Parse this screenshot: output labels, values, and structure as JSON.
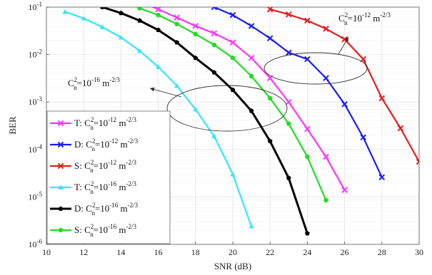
{
  "chart_data": {
    "type": "line",
    "title": "",
    "xlabel": "SNR (dB)",
    "ylabel": "BER",
    "xlim": [
      10,
      30
    ],
    "ylim": [
      1e-06,
      0.1
    ],
    "yscale": "log",
    "xticks": [
      "10",
      "12",
      "14",
      "16",
      "18",
      "20",
      "22",
      "24",
      "26",
      "28",
      "30"
    ],
    "yticks": [
      {
        "base": "10",
        "exp": "-6"
      },
      {
        "base": "10",
        "exp": "-5"
      },
      {
        "base": "10",
        "exp": "-4"
      },
      {
        "base": "10",
        "exp": "-3"
      },
      {
        "base": "10",
        "exp": "-2"
      },
      {
        "base": "10",
        "exp": "-1"
      }
    ],
    "grid": true,
    "legend_position": "left",
    "series": [
      {
        "name": "T: C_n^2=10^-12 m^-2/3",
        "label": {
          "prefix": "T",
          "exp": "-12"
        },
        "color": "#ff33ff",
        "marker": "x",
        "x": [
          15,
          16,
          17,
          18,
          19,
          20,
          21,
          22,
          23,
          24,
          25,
          26
        ],
        "y": [
          0.13,
          0.09,
          0.06,
          0.04,
          0.028,
          0.018,
          0.0085,
          0.0032,
          0.001,
          0.00027,
          7e-05,
          1.4e-05
        ]
      },
      {
        "name": "D: C_n^2=10^-12 m^-2/3",
        "label": {
          "prefix": "D",
          "exp": "-12"
        },
        "color": "#1a1aff",
        "marker": "x",
        "x": [
          18,
          19,
          20,
          21,
          22,
          23,
          24,
          25,
          26,
          27,
          28
        ],
        "y": [
          0.15,
          0.1,
          0.068,
          0.04,
          0.022,
          0.011,
          0.008,
          0.0032,
          0.0009,
          0.00018,
          2.6e-05
        ]
      },
      {
        "name": "S: C_n^2=10^-12 m^-2/3",
        "label": {
          "prefix": "S",
          "exp": "-12"
        },
        "color": "#e51c1c",
        "marker": "x",
        "x": [
          22,
          23,
          24,
          25,
          26,
          27,
          28,
          29,
          30
        ],
        "y": [
          0.09,
          0.07,
          0.052,
          0.035,
          0.021,
          0.008,
          0.0012,
          0.00028,
          5.5e-05
        ]
      },
      {
        "name": "T: C_n^2=10^-16 m^-2/3",
        "label": {
          "prefix": "T",
          "exp": "-16"
        },
        "color": "#33e6ff",
        "marker": "triangle",
        "x": [
          11,
          12,
          13,
          14,
          15,
          16,
          17,
          18,
          19,
          20,
          21
        ],
        "y": [
          0.08,
          0.058,
          0.038,
          0.023,
          0.012,
          0.0055,
          0.0022,
          0.0007,
          0.00019,
          3e-05,
          2.4e-06
        ]
      },
      {
        "name": "D: C_n^2=10^-16 m^-2/3",
        "label": {
          "prefix": "D",
          "exp": "-16"
        },
        "color": "#000000",
        "marker": "pentagon",
        "x": [
          13,
          14,
          15,
          16,
          17,
          18,
          19,
          20,
          21,
          22,
          23,
          24
        ],
        "y": [
          0.1,
          0.075,
          0.052,
          0.033,
          0.018,
          0.0085,
          0.0042,
          0.0018,
          0.00065,
          0.00015,
          2.5e-05,
          1.7e-06
        ]
      },
      {
        "name": "S: C_n^2=10^-16 m^-2/3",
        "label": {
          "prefix": "S",
          "exp": "-16"
        },
        "color": "#22dd22",
        "marker": "circle",
        "x": [
          15,
          16,
          17,
          18,
          19,
          20,
          21,
          22,
          23,
          24,
          25
        ],
        "y": [
          0.095,
          0.068,
          0.044,
          0.027,
          0.016,
          0.0085,
          0.0035,
          0.0012,
          0.00035,
          7e-05,
          8.5e-06
        ]
      }
    ],
    "annotations": [
      {
        "text": {
          "c": "C",
          "sub": "n",
          "sup": "2",
          "eq": "=10",
          "exp": "-12",
          "unit": " m",
          "uexp": "-2/3"
        },
        "ellipse_x": 24.3,
        "ellipse_y": 0.004,
        "arrow_to_x": 24.6,
        "arrow_to_y": 0.008
      },
      {
        "text": {
          "c": "C",
          "sub": "n",
          "sup": "2",
          "eq": "=10",
          "exp": "-16",
          "unit": " m",
          "uexp": "-2/3"
        },
        "ellipse_x": 19.7,
        "ellipse_y": 0.001,
        "arrow_to_x": 17.5,
        "arrow_to_y": 0.002
      }
    ]
  }
}
